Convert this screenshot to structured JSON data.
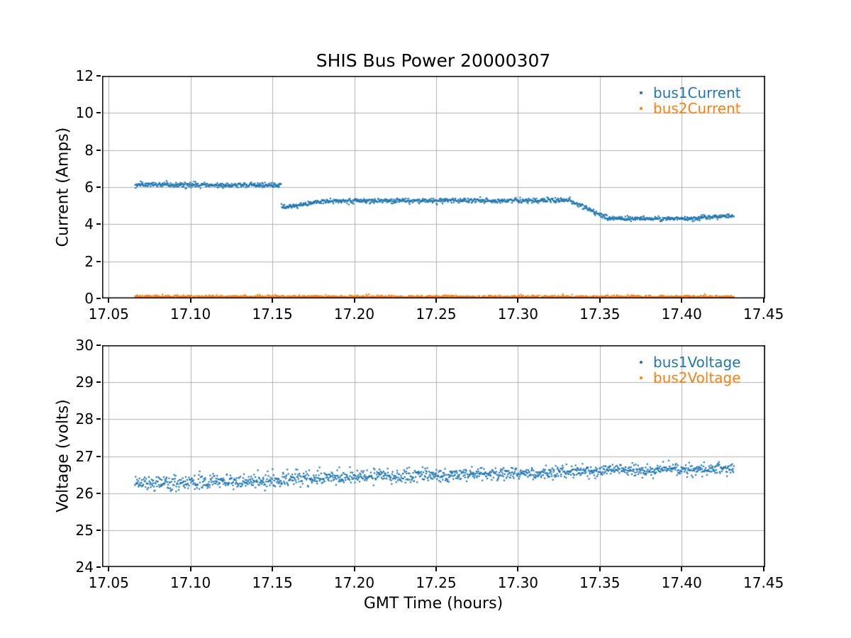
{
  "figure": {
    "background": "#ffffff",
    "text_color": "#000000",
    "grid_color": "#b0b0b0",
    "spine_color": "#000000"
  },
  "chart_data": [
    {
      "type": "scatter",
      "title": "SHIS Bus Power 20000307",
      "ylabel": "Current (Amps)",
      "xlim": [
        17.046,
        17.451
      ],
      "ylim": [
        0,
        12
      ],
      "xticks": [
        17.05,
        17.1,
        17.15,
        17.2,
        17.25,
        17.3,
        17.35,
        17.4,
        17.45
      ],
      "xtick_labels": [
        "17.05",
        "17.10",
        "17.15",
        "17.20",
        "17.25",
        "17.30",
        "17.35",
        "17.40",
        "17.45"
      ],
      "yticks": [
        0,
        2,
        4,
        6,
        8,
        10,
        12
      ],
      "ytick_labels": [
        "0",
        "2",
        "4",
        "6",
        "8",
        "10",
        "12"
      ],
      "grid": true,
      "legend_position": "upper right",
      "marker_size_px": 2.2,
      "series": [
        {
          "name": "bus1Current",
          "color": "#1f77b4",
          "segments": [
            {
              "x_start": 17.066,
              "x_end": 17.1555,
              "y_start": 6.13,
              "y_end": 6.11,
              "noise_sd": 0.07,
              "n": 330
            },
            {
              "x_start": 17.1555,
              "x_end": 17.1585,
              "y_start": 5.02,
              "y_end": 4.88,
              "noise_sd": 0.06,
              "n": 12
            },
            {
              "x_start": 17.1585,
              "x_end": 17.18,
              "y_start": 4.92,
              "y_end": 5.22,
              "noise_sd": 0.06,
              "n": 80
            },
            {
              "x_start": 17.18,
              "x_end": 17.332,
              "y_start": 5.25,
              "y_end": 5.3,
              "noise_sd": 0.065,
              "n": 560
            },
            {
              "x_start": 17.332,
              "x_end": 17.354,
              "y_start": 5.28,
              "y_end": 4.36,
              "noise_sd": 0.06,
              "n": 80
            },
            {
              "x_start": 17.354,
              "x_end": 17.412,
              "y_start": 4.3,
              "y_end": 4.3,
              "noise_sd": 0.055,
              "n": 215
            },
            {
              "x_start": 17.412,
              "x_end": 17.432,
              "y_start": 4.37,
              "y_end": 4.45,
              "noise_sd": 0.055,
              "n": 75
            }
          ]
        },
        {
          "name": "bus2Current",
          "color": "#ff7f0e",
          "clamp_min": 0.01,
          "segments": [
            {
              "x_start": 17.066,
              "x_end": 17.432,
              "y_start": 0.09,
              "y_end": 0.07,
              "noise_sd": 0.045,
              "n": 1352
            }
          ]
        }
      ]
    },
    {
      "type": "scatter",
      "ylabel": "Voltage (volts)",
      "xlabel": "GMT Time (hours)",
      "xlim": [
        17.046,
        17.451
      ],
      "ylim": [
        24,
        30
      ],
      "xticks": [
        17.05,
        17.1,
        17.15,
        17.2,
        17.25,
        17.3,
        17.35,
        17.4,
        17.45
      ],
      "xtick_labels": [
        "17.05",
        "17.10",
        "17.15",
        "17.20",
        "17.25",
        "17.30",
        "17.35",
        "17.40",
        "17.45"
      ],
      "yticks": [
        24,
        25,
        26,
        27,
        28,
        29,
        30
      ],
      "ytick_labels": [
        "24",
        "25",
        "26",
        "27",
        "28",
        "29",
        "30"
      ],
      "grid": true,
      "legend_position": "upper right",
      "marker_size_px": 2.2,
      "series": [
        {
          "name": "bus1Voltage",
          "color": "#1f77b4",
          "segments": [
            {
              "x_start": 17.066,
              "x_end": 17.156,
              "y_start": 26.28,
              "y_end": 26.33,
              "noise_sd": 0.1,
              "n": 335
            },
            {
              "x_start": 17.156,
              "x_end": 17.18,
              "y_start": 26.42,
              "y_end": 26.43,
              "noise_sd": 0.095,
              "n": 90
            },
            {
              "x_start": 17.18,
              "x_end": 17.335,
              "y_start": 26.43,
              "y_end": 26.56,
              "noise_sd": 0.09,
              "n": 570
            },
            {
              "x_start": 17.335,
              "x_end": 17.432,
              "y_start": 26.59,
              "y_end": 26.66,
              "noise_sd": 0.08,
              "n": 360
            }
          ]
        },
        {
          "name": "bus2Voltage",
          "color": "#ff7f0e",
          "segments": []
        }
      ]
    }
  ]
}
